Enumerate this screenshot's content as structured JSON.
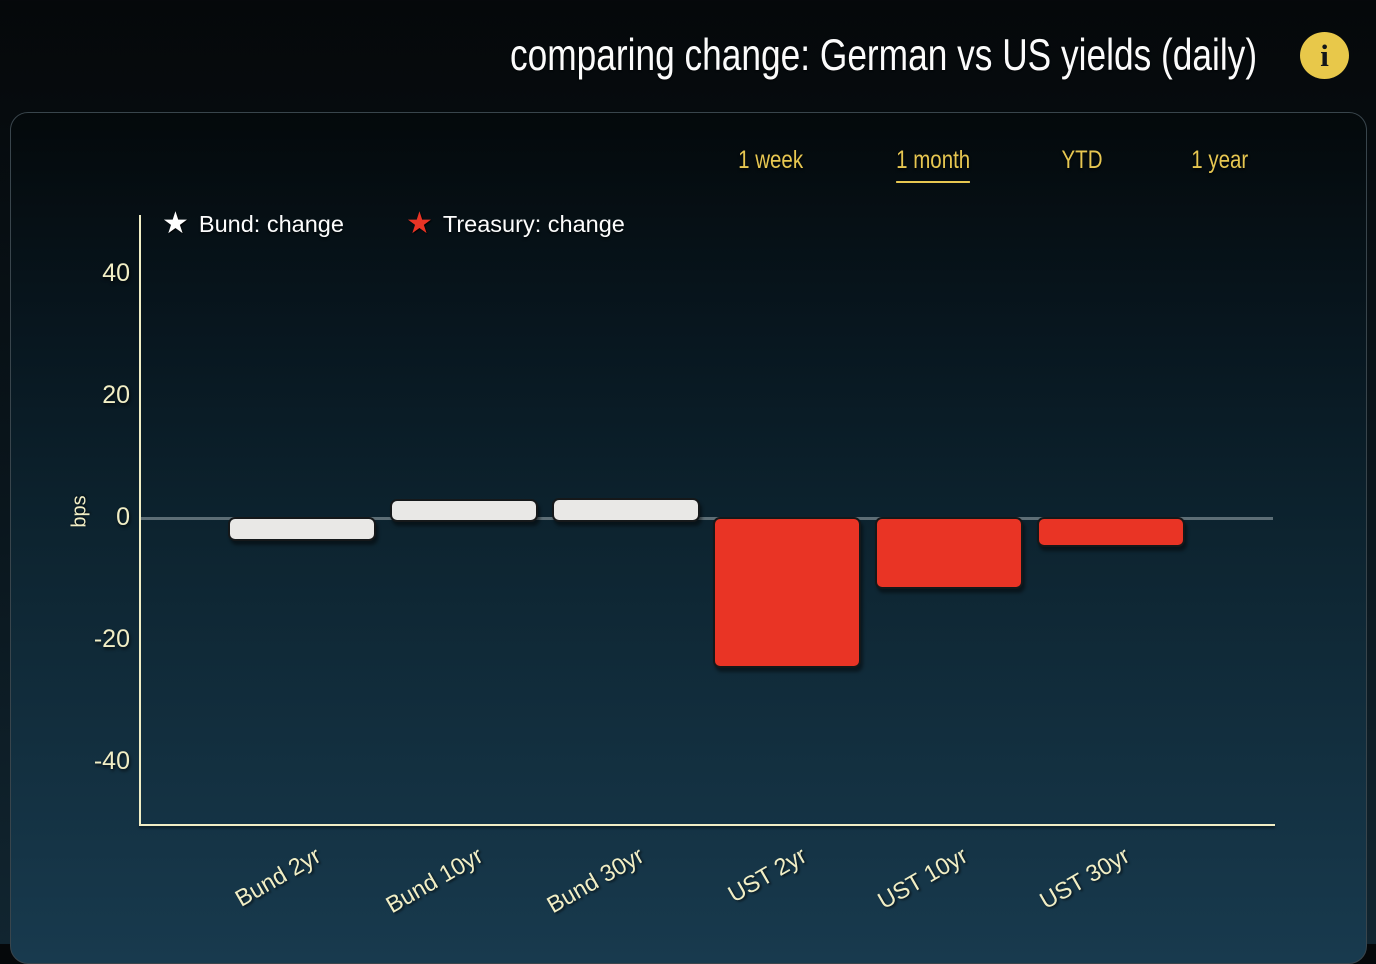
{
  "header": {
    "title": "comparing change: German vs US yields (daily)",
    "info_icon_glyph": "i"
  },
  "tabs": [
    {
      "label": "1 week",
      "active": false
    },
    {
      "label": "1 month",
      "active": true
    },
    {
      "label": "YTD",
      "active": false
    },
    {
      "label": "1 year",
      "active": false
    }
  ],
  "legend": [
    {
      "marker": "star-icon",
      "marker_glyph": "★",
      "color": "#ffffff",
      "label": "Bund: change"
    },
    {
      "marker": "star-icon",
      "marker_glyph": "★",
      "color": "#e93425",
      "label": "Treasury: change"
    }
  ],
  "chart_data": {
    "type": "bar",
    "categories": [
      "Bund 2yr",
      "Bund 10yr",
      "Bund 30yr",
      "UST 2yr",
      "UST 10yr",
      "UST 30yr"
    ],
    "series": [
      {
        "name": "Bund: change",
        "color": "#e9e8e6",
        "values": [
          -3.5,
          3.3,
          3.4,
          null,
          null,
          null
        ]
      },
      {
        "name": "Treasury: change",
        "color": "#e93425",
        "values": [
          null,
          null,
          null,
          -24.3,
          -11.3,
          -4.4
        ]
      }
    ],
    "title": "comparing change: German vs US yields (daily)",
    "xlabel": "",
    "ylabel": "bps",
    "ylim": [
      -50,
      50
    ],
    "yticks": [
      40,
      20,
      0,
      -20,
      -40
    ],
    "grid": false,
    "legend_position": "top-left"
  },
  "colors": {
    "accent_gold": "#e7c751",
    "axis_cream": "#f1eec5",
    "treasury_red": "#e93425",
    "bund_white": "#e9e8e6",
    "zero_line_gray": "#5d6e76",
    "title_white": "#fbfbfb"
  }
}
